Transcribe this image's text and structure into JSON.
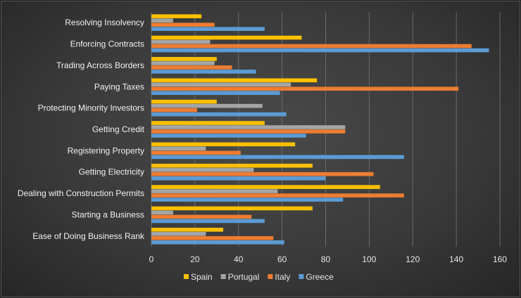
{
  "chart_data": {
    "type": "bar",
    "orientation": "horizontal",
    "title": "",
    "xlabel": "",
    "ylabel": "",
    "xlim": [
      0,
      160
    ],
    "ticks": [
      0,
      20,
      40,
      60,
      80,
      100,
      120,
      140,
      160
    ],
    "grid": true,
    "legend_position": "bottom",
    "categories": [
      "Resolving Insolvency",
      "Enforcing Contracts",
      "Trading Across Borders",
      "Paying Taxes",
      "Protecting Minority Investors",
      "Getting Credit",
      "Registering Property",
      "Getting Electricity",
      "Dealing with Construction Permits",
      "Starting a Business",
      "Ease of Doing Business Rank"
    ],
    "series": [
      {
        "name": "Spain",
        "color": "#FFC000",
        "values": [
          23,
          69,
          30,
          76,
          30,
          52,
          66,
          74,
          105,
          74,
          33
        ]
      },
      {
        "name": "Portugal",
        "color": "#A5A5A5",
        "values": [
          10,
          27,
          29,
          64,
          51,
          89,
          25,
          47,
          58,
          10,
          25
        ]
      },
      {
        "name": "Italy",
        "color": "#ED7D31",
        "values": [
          29,
          147,
          37,
          141,
          21,
          89,
          41,
          102,
          116,
          46,
          56
        ]
      },
      {
        "name": "Greece",
        "color": "#5B9BD5",
        "values": [
          52,
          155,
          48,
          59,
          62,
          71,
          116,
          80,
          88,
          52,
          61
        ]
      }
    ]
  }
}
